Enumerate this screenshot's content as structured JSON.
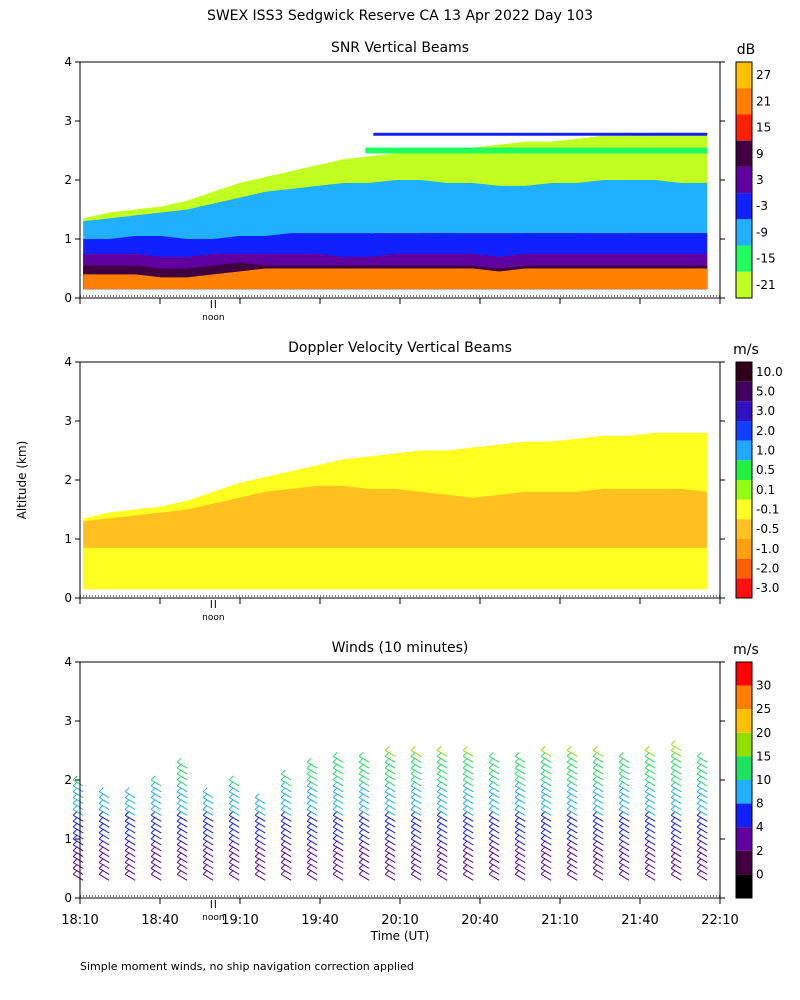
{
  "figure": {
    "title": "SWEX ISS3 Sedgwick Reserve CA  13 Apr 2022 Day 103",
    "ylabel": "Altitude (km)",
    "xlabel": "Time (UT)",
    "footnote": "Simple moment winds, no ship navigation correction applied",
    "noon_label": "noon"
  },
  "chart_data": [
    {
      "type": "heatmap",
      "title": "SNR Vertical Beams",
      "units": "dB",
      "ylim": [
        0,
        4
      ],
      "yticks": [
        "0",
        "1",
        "2",
        "3",
        "4"
      ],
      "colorbar": {
        "labels": [
          "27",
          "21",
          "15",
          "9",
          "3",
          "-3",
          "-9",
          "-15",
          "-21"
        ],
        "colors": [
          "#ffc000",
          "#ff8000",
          "#ff2000",
          "#400040",
          "#6000a0",
          "#1020ff",
          "#20b0ff",
          "#20ff60",
          "#c0ff20"
        ]
      },
      "layers": [
        {
          "label": "-21",
          "top": [
            1.35,
            1.45,
            1.5,
            1.55,
            1.65,
            1.8,
            1.95,
            2.05,
            2.15,
            2.25,
            2.35,
            2.4,
            2.45,
            2.5,
            2.5,
            2.55,
            2.6,
            2.65,
            2.65,
            2.7,
            2.75,
            2.75,
            2.8,
            2.8,
            2.8
          ]
        },
        {
          "label": "-9",
          "top": [
            1.3,
            1.35,
            1.4,
            1.45,
            1.5,
            1.6,
            1.7,
            1.8,
            1.85,
            1.9,
            1.95,
            1.95,
            2.0,
            2.0,
            1.95,
            1.95,
            1.9,
            1.9,
            1.95,
            1.95,
            2.0,
            2.0,
            2.0,
            1.95,
            1.95
          ]
        },
        {
          "label": "-3",
          "top": [
            1.0,
            1.0,
            1.05,
            1.05,
            1.0,
            1.0,
            1.05,
            1.05,
            1.1,
            1.1,
            1.1,
            1.1,
            1.05,
            1.1,
            1.1,
            1.05,
            1.05,
            1.1,
            1.1,
            1.1,
            1.05,
            1.1,
            1.1,
            1.1,
            1.1
          ]
        },
        {
          "label": "3",
          "top": [
            0.75,
            0.75,
            0.75,
            0.7,
            0.7,
            0.75,
            0.75,
            0.75,
            0.75,
            0.75,
            0.7,
            0.7,
            0.75,
            0.75,
            0.75,
            0.75,
            0.7,
            0.75,
            0.75,
            0.75,
            0.75,
            0.75,
            0.75,
            0.75,
            0.75
          ]
        },
        {
          "label": "9",
          "top": [
            0.55,
            0.55,
            0.55,
            0.5,
            0.5,
            0.55,
            0.6,
            0.55,
            0.55,
            0.55,
            0.55,
            0.55,
            0.55,
            0.55,
            0.55,
            0.55,
            0.5,
            0.55,
            0.55,
            0.55,
            0.55,
            0.55,
            0.55,
            0.55,
            0.55
          ]
        },
        {
          "label": "21",
          "top": [
            0.4,
            0.4,
            0.4,
            0.35,
            0.35,
            0.4,
            0.45,
            0.5,
            0.5,
            0.5,
            0.5,
            0.5,
            0.5,
            0.5,
            0.5,
            0.5,
            0.45,
            0.5,
            0.5,
            0.5,
            0.5,
            0.5,
            0.5,
            0.5,
            0.5
          ]
        }
      ],
      "upper_bands": [
        {
          "label": "-3",
          "y": [
            2.75,
            2.8
          ],
          "start_hour": 20.0
        },
        {
          "label": "-15",
          "y": [
            2.45,
            2.55
          ],
          "start_hour": 19.95
        },
        {
          "label": "-3",
          "y": [
            1.05,
            1.1
          ],
          "start_hour": 20.0
        }
      ]
    },
    {
      "type": "heatmap",
      "title": "Doppler Velocity Vertical Beams",
      "units": "m/s",
      "ylim": [
        0,
        4
      ],
      "yticks": [
        "0",
        "1",
        "2",
        "3",
        "4"
      ],
      "colorbar": {
        "labels": [
          "10.0",
          "5.0",
          "3.0",
          "2.0",
          "1.0",
          "0.5",
          "0.1",
          "-0.1",
          "-0.5",
          "-1.0",
          "-2.0",
          "-3.0"
        ],
        "colors": [
          "#300018",
          "#400060",
          "#3010c0",
          "#1040ff",
          "#20a8ff",
          "#20f040",
          "#90ff10",
          "#ffff20",
          "#ffc020",
          "#ffa010",
          "#ff6000",
          "#ff1010"
        ]
      },
      "layers": [
        {
          "label": "-0.1",
          "top": [
            1.35,
            1.45,
            1.5,
            1.55,
            1.65,
            1.8,
            1.95,
            2.05,
            2.15,
            2.25,
            2.35,
            2.4,
            2.45,
            2.5,
            2.5,
            2.55,
            2.6,
            2.65,
            2.65,
            2.7,
            2.75,
            2.75,
            2.8,
            2.8,
            2.8
          ]
        },
        {
          "label": "-0.5",
          "top": [
            1.3,
            1.35,
            1.4,
            1.45,
            1.5,
            1.6,
            1.7,
            1.8,
            1.85,
            1.9,
            1.9,
            1.85,
            1.85,
            1.8,
            1.75,
            1.7,
            1.75,
            1.8,
            1.8,
            1.8,
            1.85,
            1.85,
            1.85,
            1.85,
            1.8
          ]
        }
      ],
      "bottom_layer": {
        "label": "-0.1",
        "top": 0.85
      }
    },
    {
      "type": "barbs",
      "title": "Winds (10 minutes)",
      "units": "m/s",
      "ylim": [
        0,
        4
      ],
      "yticks": [
        "0",
        "1",
        "2",
        "3",
        "4"
      ],
      "xlabel": "Time (UT)",
      "xticks": [
        "18:10",
        "18:40",
        "19:10",
        "19:40",
        "20:10",
        "20:40",
        "21:10",
        "21:40",
        "22:10"
      ],
      "colorbar": {
        "labels": [
          "30",
          "25",
          "20",
          "15",
          "10",
          "8",
          "4",
          "2",
          "0"
        ],
        "colors": [
          "#ff0000",
          "#ff8000",
          "#ffc000",
          "#90e000",
          "#20e060",
          "#20b0ff",
          "#1020ff",
          "#6000a0",
          "#400040",
          "#000000"
        ]
      },
      "profiles_top_km": [
        2.0,
        1.8,
        1.8,
        2.0,
        2.3,
        1.8,
        2.0,
        1.7,
        2.1,
        2.3,
        2.4,
        2.4,
        2.5,
        2.5,
        2.5,
        2.5,
        2.4,
        2.4,
        2.5,
        2.5,
        2.5,
        2.4,
        2.5,
        2.6,
        2.4
      ]
    }
  ]
}
